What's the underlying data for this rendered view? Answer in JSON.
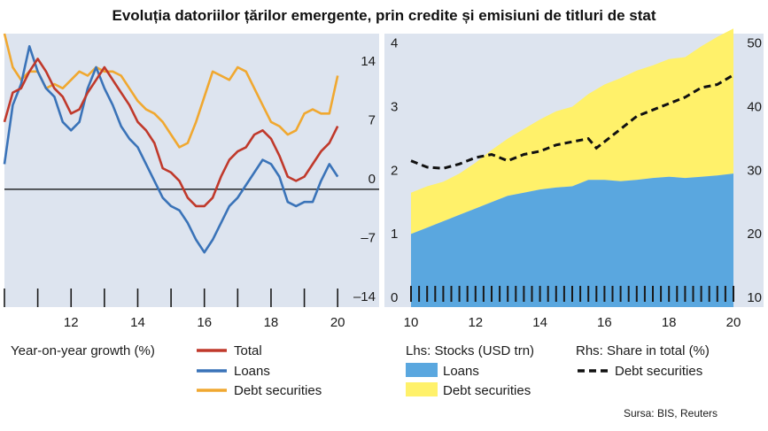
{
  "title": "Evoluția datoriilor țărilor emergente, prin credite și emisiuni de titluri de stat",
  "source": "Sursa: BIS, Reuters",
  "colors": {
    "panel_bg": "#dde4ef",
    "total": "#c0392b",
    "loans_line": "#3a73b8",
    "debt_line": "#f0a830",
    "loans_area": "#5aa7df",
    "debt_area": "#fff16a",
    "share_line": "#111111",
    "zero_line": "#000000"
  },
  "chart_data": [
    {
      "type": "line",
      "legend_heading": "Year-on-year growth (%)",
      "x_ticks": [
        12,
        14,
        16,
        18,
        20
      ],
      "y_ticks": [
        14,
        7,
        0,
        -7,
        -14
      ],
      "xlim": [
        2010,
        2020.5
      ],
      "ylim": [
        -14,
        18.5
      ],
      "y_axis_side": "right",
      "grid": false,
      "legend": "bottom",
      "series": [
        {
          "name": "Total",
          "color": "#c0392b",
          "x": [
            2010.0,
            2010.25,
            2010.5,
            2010.75,
            2011.0,
            2011.25,
            2011.5,
            2011.75,
            2012.0,
            2012.25,
            2012.5,
            2012.75,
            2013.0,
            2013.25,
            2013.5,
            2013.75,
            2014.0,
            2014.25,
            2014.5,
            2014.75,
            2015.0,
            2015.25,
            2015.5,
            2015.75,
            2016.0,
            2016.25,
            2016.5,
            2016.75,
            2017.0,
            2017.25,
            2017.5,
            2017.75,
            2018.0,
            2018.25,
            2018.5,
            2018.75,
            2019.0,
            2019.25,
            2019.5,
            2019.75,
            2020.0
          ],
          "values": [
            8.0,
            11.5,
            12.0,
            14.0,
            15.5,
            14.0,
            12.0,
            11.0,
            9.0,
            9.5,
            11.5,
            13.0,
            14.5,
            13.0,
            11.5,
            10.0,
            8.0,
            7.0,
            5.5,
            2.5,
            2.0,
            1.0,
            -1.0,
            -2.0,
            -2.0,
            -1.0,
            1.5,
            3.5,
            4.5,
            5.0,
            6.5,
            7.0,
            6.0,
            4.0,
            1.5,
            1.0,
            1.5,
            3.0,
            4.5,
            5.5,
            7.5
          ]
        },
        {
          "name": "Loans",
          "color": "#3a73b8",
          "x": [
            2010.0,
            2010.25,
            2010.5,
            2010.75,
            2011.0,
            2011.25,
            2011.5,
            2011.75,
            2012.0,
            2012.25,
            2012.5,
            2012.75,
            2013.0,
            2013.25,
            2013.5,
            2013.75,
            2014.0,
            2014.25,
            2014.5,
            2014.75,
            2015.0,
            2015.25,
            2015.5,
            2015.75,
            2016.0,
            2016.25,
            2016.5,
            2016.75,
            2017.0,
            2017.25,
            2017.5,
            2017.75,
            2018.0,
            2018.25,
            2018.5,
            2018.75,
            2019.0,
            2019.25,
            2019.5,
            2019.75,
            2020.0
          ],
          "values": [
            3.0,
            10.0,
            12.5,
            17.0,
            14.0,
            12.0,
            11.0,
            8.0,
            7.0,
            8.0,
            12.0,
            14.5,
            12.0,
            10.0,
            7.5,
            6.0,
            5.0,
            3.0,
            1.0,
            -1.0,
            -2.0,
            -2.5,
            -4.0,
            -6.0,
            -7.5,
            -6.0,
            -4.0,
            -2.0,
            -1.0,
            0.5,
            2.0,
            3.5,
            3.0,
            1.5,
            -1.5,
            -2.0,
            -1.5,
            -1.5,
            1.0,
            3.0,
            1.5
          ]
        },
        {
          "name": "Debt securities",
          "color": "#f0a830",
          "x": [
            2010.0,
            2010.25,
            2010.5,
            2010.75,
            2011.0,
            2011.25,
            2011.5,
            2011.75,
            2012.0,
            2012.25,
            2012.5,
            2012.75,
            2013.0,
            2013.25,
            2013.5,
            2013.75,
            2014.0,
            2014.25,
            2014.5,
            2014.75,
            2015.0,
            2015.25,
            2015.5,
            2015.75,
            2016.0,
            2016.25,
            2016.5,
            2016.75,
            2017.0,
            2017.25,
            2017.5,
            2017.75,
            2018.0,
            2018.25,
            2018.5,
            2018.75,
            2019.0,
            2019.25,
            2019.5,
            2019.75,
            2020.0
          ],
          "values": [
            18.5,
            14.5,
            13.0,
            14.0,
            14.0,
            12.0,
            12.5,
            12.0,
            13.0,
            14.0,
            13.5,
            14.5,
            14.0,
            14.0,
            13.5,
            12.0,
            10.5,
            9.5,
            9.0,
            8.0,
            6.5,
            5.0,
            5.5,
            8.0,
            11.0,
            14.0,
            13.5,
            13.0,
            14.5,
            14.0,
            12.0,
            10.0,
            8.0,
            7.5,
            6.5,
            7.0,
            9.0,
            9.5,
            9.0,
            9.0,
            13.5
          ]
        }
      ]
    },
    {
      "type": "area",
      "legend_heading_left": "Lhs: Stocks (USD trn)",
      "legend_heading_right": "Rhs: Share in total (%)",
      "x_ticks": [
        10,
        12,
        14,
        16,
        18,
        20
      ],
      "y_ticks_left": [
        0,
        1,
        2,
        3,
        4
      ],
      "y_ticks_right": [
        10,
        20,
        30,
        40,
        50
      ],
      "xlim": [
        2010,
        2020
      ],
      "ylim_left": [
        0,
        4.3
      ],
      "ylim_right": [
        10,
        53
      ],
      "grid": false,
      "legend": "bottom",
      "series": [
        {
          "name": "Loans",
          "axis": "left",
          "color": "#5aa7df",
          "x": [
            2010.0,
            2010.5,
            2011.0,
            2011.5,
            2012.0,
            2012.5,
            2013.0,
            2013.5,
            2014.0,
            2014.5,
            2015.0,
            2015.5,
            2016.0,
            2016.5,
            2017.0,
            2017.5,
            2018.0,
            2018.5,
            2019.0,
            2019.5,
            2020.0
          ],
          "values": [
            1.15,
            1.25,
            1.35,
            1.45,
            1.55,
            1.65,
            1.75,
            1.8,
            1.85,
            1.88,
            1.9,
            2.0,
            2.0,
            1.98,
            2.0,
            2.03,
            2.05,
            2.03,
            2.05,
            2.07,
            2.1
          ]
        },
        {
          "name": "Debt securities",
          "axis": "left",
          "color": "#fff16a",
          "x": [
            2010.0,
            2010.5,
            2011.0,
            2011.5,
            2012.0,
            2012.5,
            2013.0,
            2013.5,
            2014.0,
            2014.5,
            2015.0,
            2015.5,
            2016.0,
            2016.5,
            2017.0,
            2017.5,
            2018.0,
            2018.5,
            2019.0,
            2019.5,
            2020.0
          ],
          "values": [
            0.65,
            0.65,
            0.62,
            0.65,
            0.72,
            0.82,
            0.9,
            1.0,
            1.1,
            1.2,
            1.25,
            1.35,
            1.5,
            1.62,
            1.72,
            1.77,
            1.85,
            1.9,
            2.05,
            2.18,
            2.28
          ]
        },
        {
          "name": "Debt securities",
          "axis": "right",
          "style": "dashed-line",
          "color": "#111111",
          "x": [
            2010.0,
            2010.5,
            2011.0,
            2011.5,
            2012.0,
            2012.5,
            2013.0,
            2013.5,
            2014.0,
            2014.5,
            2015.0,
            2015.5,
            2015.75,
            2016.0,
            2016.5,
            2017.0,
            2017.5,
            2018.0,
            2018.5,
            2019.0,
            2019.5,
            2020.0
          ],
          "values": [
            33.0,
            32.0,
            31.8,
            32.5,
            33.5,
            34.0,
            33.0,
            34.0,
            34.5,
            35.5,
            36.0,
            36.5,
            35.0,
            36.0,
            38.0,
            40.0,
            41.0,
            42.0,
            43.0,
            44.5,
            45.0,
            46.5
          ]
        }
      ]
    }
  ]
}
